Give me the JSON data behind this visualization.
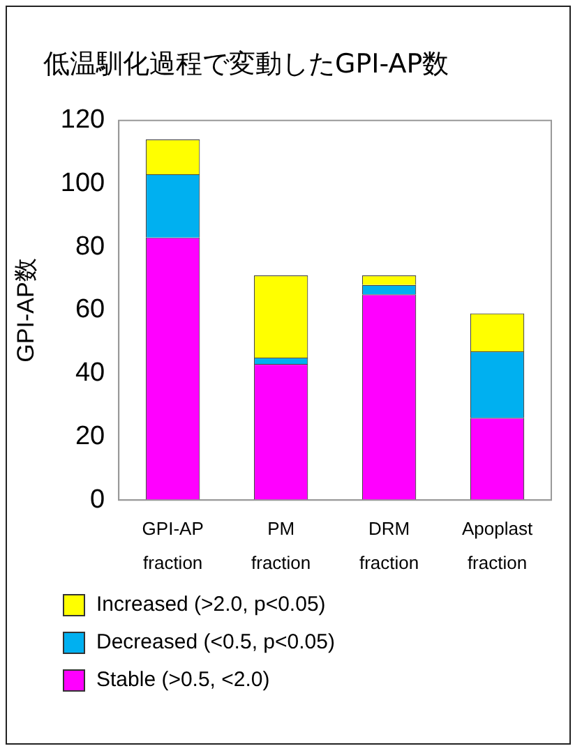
{
  "chart_data": {
    "type": "bar",
    "title": "低温馴化過程で変動したGPI-AP数",
    "ylabel": "GPI-AP数",
    "categories": [
      "GPI-AP fraction",
      "PM fraction",
      "DRM fraction",
      "Apoplast fraction"
    ],
    "stacked": true,
    "ylim": [
      0,
      120
    ],
    "yticks": [
      0,
      20,
      40,
      60,
      80,
      100,
      120
    ],
    "grid": false,
    "legend": "bottom",
    "series": [
      {
        "name": "Stable (>0.5, <2.0)",
        "color": "#ff00ff",
        "values": [
          83,
          43,
          65,
          26
        ]
      },
      {
        "name": "Decreased (<0.5, p<0.05)",
        "color": "#00b0f0",
        "values": [
          20,
          2,
          3,
          21
        ]
      },
      {
        "name": "Increased (>2.0, p<0.05)",
        "color": "#ffff00",
        "values": [
          11,
          26,
          3,
          12
        ]
      }
    ]
  }
}
